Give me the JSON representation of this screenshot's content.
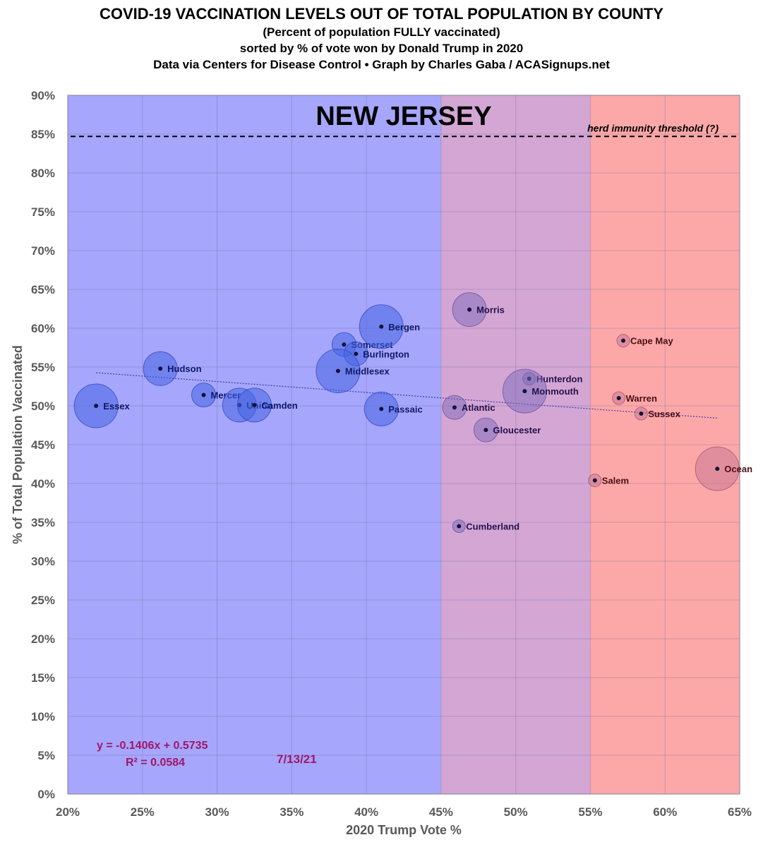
{
  "title": {
    "line1": "COVID-19 VACCINATION LEVELS OUT OF TOTAL POPULATION BY COUNTY",
    "line2": "(Percent of population FULLY vaccinated)",
    "line3": "sorted by % of vote won by Donald Trump in 2020",
    "line4": "Data via Centers for Disease Control • Graph by Charles Gaba / ACASignups.net"
  },
  "chart_data": {
    "type": "scatter",
    "state_label": "NEW JERSEY",
    "xlabel": "2020 Trump Vote %",
    "ylabel": "% of Total Population Vaccinated",
    "xlim": [
      20,
      65
    ],
    "ylim": [
      0,
      90
    ],
    "x_ticks": [
      "20%",
      "25%",
      "30%",
      "35%",
      "40%",
      "45%",
      "50%",
      "55%",
      "60%",
      "65%"
    ],
    "y_ticks": [
      "0%",
      "5%",
      "10%",
      "15%",
      "20%",
      "25%",
      "30%",
      "35%",
      "40%",
      "45%",
      "50%",
      "55%",
      "60%",
      "65%",
      "70%",
      "75%",
      "80%",
      "85%",
      "90%"
    ],
    "grid": true,
    "bands": [
      {
        "from": 20,
        "to": 45,
        "color": "#a6a6fc"
      },
      {
        "from": 45,
        "to": 55,
        "color": "#d4a6d4"
      },
      {
        "from": 55,
        "to": 65,
        "color": "#fda8a8"
      }
    ],
    "herd_immunity": {
      "value": 84.7,
      "label": "herd immunity threshold (?)"
    },
    "points": [
      {
        "county": "Essex",
        "x": 21.9,
        "y": 50.0,
        "pop_rank": 4
      },
      {
        "county": "Hudson",
        "x": 26.2,
        "y": 54.8,
        "pop_rank": 3
      },
      {
        "county": "Mercer",
        "x": 29.1,
        "y": 51.4,
        "pop_rank": 2
      },
      {
        "county": "Union",
        "x": 31.5,
        "y": 50.1,
        "pop_rank": 3
      },
      {
        "county": "Camden",
        "x": 32.5,
        "y": 50.1,
        "pop_rank": 3
      },
      {
        "county": "Somerset",
        "x": 38.5,
        "y": 57.9,
        "pop_rank": 2
      },
      {
        "county": "Burlington",
        "x": 39.3,
        "y": 56.7,
        "pop_rank": 2
      },
      {
        "county": "Middlesex",
        "x": 38.1,
        "y": 54.5,
        "pop_rank": 4
      },
      {
        "county": "Bergen",
        "x": 41.0,
        "y": 60.2,
        "pop_rank": 4
      },
      {
        "county": "Passaic",
        "x": 41.0,
        "y": 49.6,
        "pop_rank": 3
      },
      {
        "county": "Morris",
        "x": 46.9,
        "y": 62.4,
        "pop_rank": 3
      },
      {
        "county": "Atlantic",
        "x": 45.9,
        "y": 49.8,
        "pop_rank": 2
      },
      {
        "county": "Gloucester",
        "x": 48.0,
        "y": 46.9,
        "pop_rank": 2
      },
      {
        "county": "Cumberland",
        "x": 46.2,
        "y": 34.5,
        "pop_rank": 1
      },
      {
        "county": "Hunterdon",
        "x": 50.9,
        "y": 53.5,
        "pop_rank": 1
      },
      {
        "county": "Monmouth",
        "x": 50.6,
        "y": 51.9,
        "pop_rank": 4
      },
      {
        "county": "Cape May",
        "x": 57.2,
        "y": 58.4,
        "pop_rank": 1
      },
      {
        "county": "Warren",
        "x": 56.9,
        "y": 51.0,
        "pop_rank": 1
      },
      {
        "county": "Sussex",
        "x": 58.4,
        "y": 49.0,
        "pop_rank": 1
      },
      {
        "county": "Salem",
        "x": 55.3,
        "y": 40.4,
        "pop_rank": 1
      },
      {
        "county": "Ocean",
        "x": 63.5,
        "y": 41.9,
        "pop_rank": 4
      }
    ],
    "trendline": {
      "slope": -0.1406,
      "intercept": 57.35,
      "x_from": 21.9,
      "x_to": 63.5,
      "equation": "y = -0.1406x + 0.5735",
      "r2": "R² = 0.0584"
    },
    "date": "7/13/21"
  }
}
